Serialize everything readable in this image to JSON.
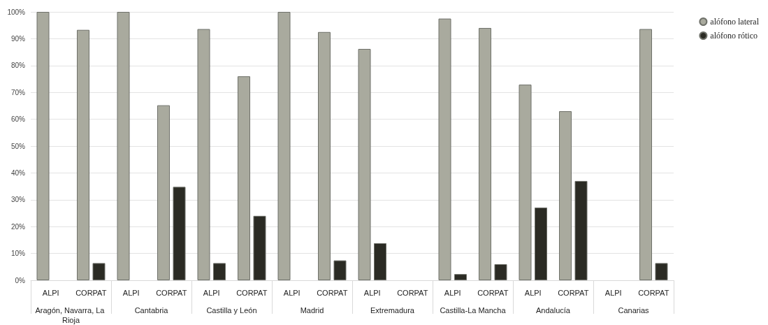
{
  "chart_data": {
    "type": "bar",
    "categories": [
      "ALPI",
      "CORPAT",
      "ALPI",
      "CORPAT",
      "ALPI",
      "CORPAT",
      "ALPI",
      "CORPAT",
      "ALPI",
      "CORPAT",
      "ALPI",
      "CORPAT",
      "ALPI",
      "CORPAT",
      "ALPI",
      "CORPAT"
    ],
    "annotations": [
      "Aragón, Navarra, La Rioja",
      "Cantabria",
      "Castilla y León",
      "Madrid",
      "Extremadura",
      "Castilla-La Mancha",
      "Andalucía",
      "Canarias"
    ],
    "series": [
      {
        "name": "alófono lateral",
        "color": "#a9aa9e",
        "values": [
          100,
          93.3,
          100,
          65.2,
          93.6,
          76,
          100,
          92.5,
          86.2,
          null,
          97.5,
          94,
          72.9,
          63,
          null,
          93.6
        ]
      },
      {
        "name": "alófono rótico",
        "color": "#2b2b24",
        "values": [
          0,
          6.4,
          0,
          34.8,
          6.4,
          24,
          0,
          7.4,
          13.8,
          null,
          2.3,
          6,
          27.1,
          37,
          null,
          6.4
        ]
      }
    ],
    "ylim": [
      0,
      100
    ],
    "yticks": [
      {
        "value": 0,
        "label": "0%"
      },
      {
        "value": 10,
        "label": "10%"
      },
      {
        "value": 20,
        "label": "20%"
      },
      {
        "value": 30,
        "label": "30%"
      },
      {
        "value": 40,
        "label": "40%"
      },
      {
        "value": 50,
        "label": "50%"
      },
      {
        "value": 60,
        "label": "60%"
      },
      {
        "value": 70,
        "label": "70%"
      },
      {
        "value": 80,
        "label": "80%"
      },
      {
        "value": 90,
        "label": "90%"
      },
      {
        "value": 100,
        "label": "100%"
      }
    ],
    "grid": "y",
    "legend": "top right"
  }
}
